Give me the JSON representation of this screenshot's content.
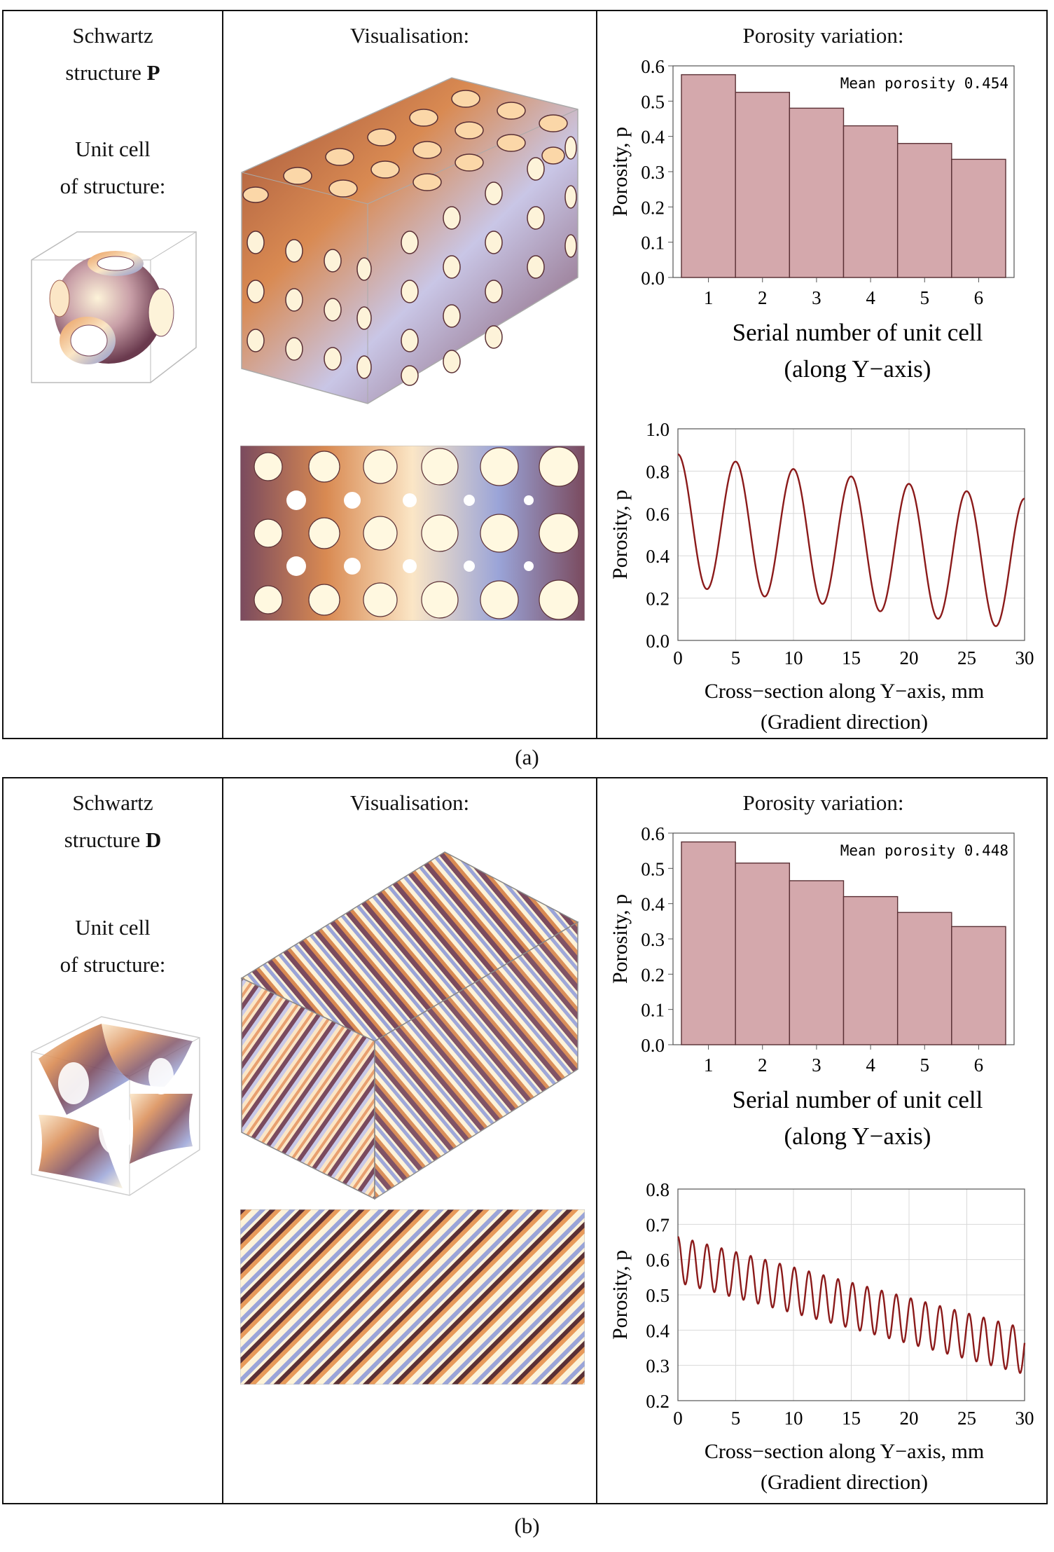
{
  "figure": {
    "panels": [
      {
        "caption": "(a)",
        "structure_label_line1": "Schwartz",
        "structure_label_prefix": "structure",
        "structure_letter": "P",
        "unit_cell_line1": "Unit cell",
        "unit_cell_line2": "of structure:",
        "visualisation_title": "Visualisation:",
        "porosity_title": "Porosity variation:"
      },
      {
        "caption": "(b)",
        "structure_label_line1": "Schwartz",
        "structure_label_prefix": "structure",
        "structure_letter": "D",
        "unit_cell_line1": "Unit cell",
        "unit_cell_line2": "of structure:",
        "visualisation_title": "Visualisation:",
        "porosity_title": "Porosity variation:"
      }
    ]
  },
  "colors": {
    "bar_fill": "#d4a8ac",
    "bar_stroke": "#5a3035",
    "line": "#8b1a1a",
    "grid": "#d8d8d8",
    "surface_dark": "#7a4a5e",
    "surface_orange": "#d98a52",
    "surface_light": "#fdf3d9",
    "surface_blue": "#9aa4d8"
  },
  "chart_data": [
    {
      "type": "bar",
      "panel": "a",
      "title": "",
      "annotation": "Mean porosity 0.454",
      "categories": [
        "1",
        "2",
        "3",
        "4",
        "5",
        "6"
      ],
      "values": [
        0.575,
        0.525,
        0.48,
        0.43,
        0.38,
        0.335
      ],
      "ylim": [
        0,
        0.6
      ],
      "yticks": [
        "0.0",
        "0.1",
        "0.2",
        "0.3",
        "0.4",
        "0.5",
        "0.6"
      ],
      "xlabel_line1": "Serial number of unit cell",
      "xlabel_line2": "(along Y−axis)",
      "ylabel": "Porosity, p"
    },
    {
      "type": "line",
      "panel": "a",
      "xlim": [
        0,
        30
      ],
      "ylim": [
        0,
        1.0
      ],
      "xticks": [
        "0",
        "5",
        "10",
        "15",
        "20",
        "25",
        "30"
      ],
      "yticks": [
        "0.0",
        "0.2",
        "0.4",
        "0.6",
        "0.8",
        "1.0"
      ],
      "series": [
        {
          "name": "porosity",
          "period": 5,
          "mean_start": 0.57,
          "mean_end": 0.36,
          "amplitude": 0.31,
          "phase_max_at": 0.0
        }
      ],
      "xlabel_line1": "Cross−section along Y−axis, mm",
      "xlabel_line2": "(Gradient direction)",
      "ylabel": "Porosity, p",
      "grid": true
    },
    {
      "type": "bar",
      "panel": "b",
      "annotation": "Mean porosity 0.448",
      "categories": [
        "1",
        "2",
        "3",
        "4",
        "5",
        "6"
      ],
      "values": [
        0.575,
        0.515,
        0.465,
        0.42,
        0.375,
        0.335
      ],
      "ylim": [
        0,
        0.6
      ],
      "yticks": [
        "0.0",
        "0.1",
        "0.2",
        "0.3",
        "0.4",
        "0.5",
        "0.6"
      ],
      "xlabel_line1": "Serial number of unit cell",
      "xlabel_line2": "(along Y−axis)",
      "ylabel": "Porosity, p"
    },
    {
      "type": "line",
      "panel": "b",
      "xlim": [
        0,
        30
      ],
      "ylim": [
        0.2,
        0.8
      ],
      "xticks": [
        "0",
        "5",
        "10",
        "15",
        "20",
        "25",
        "30"
      ],
      "yticks": [
        "0.2",
        "0.3",
        "0.4",
        "0.5",
        "0.6",
        "0.7",
        "0.8"
      ],
      "series": [
        {
          "name": "porosity",
          "period": 1.26,
          "mean_start": 0.6,
          "mean_end": 0.34,
          "amplitude": 0.065,
          "phase_max_at": 0.0
        }
      ],
      "xlabel_line1": "Cross−section along Y−axis, mm",
      "xlabel_line2": "(Gradient direction)",
      "ylabel": "Porosity, p",
      "grid": true
    }
  ]
}
